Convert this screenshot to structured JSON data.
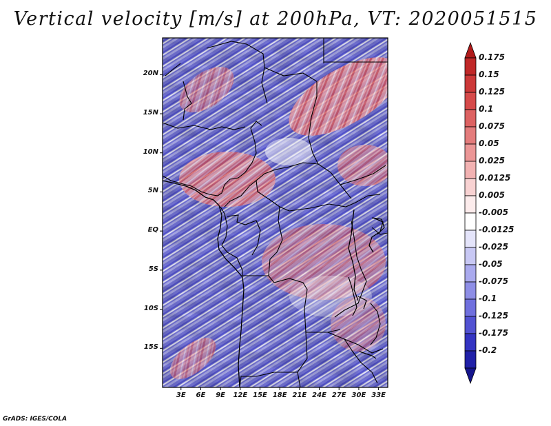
{
  "title": "Vertical velocity [m/s] at 200hPa, VT: 2020051515",
  "footer": "GrADS: IGES/COLA",
  "map": {
    "variable": "Vertical velocity",
    "units": "m/s",
    "level": "200hPa",
    "valid_time": "2020051515",
    "lat_labels": [
      "20N",
      "15N",
      "10N",
      "5N",
      "EQ",
      "5S",
      "10S",
      "15S"
    ],
    "lat_values": [
      20,
      15,
      10,
      5,
      0,
      -5,
      -10,
      -15
    ],
    "lon_labels": [
      "3E",
      "6E",
      "9E",
      "12E",
      "15E",
      "18E",
      "21E",
      "24E",
      "27E",
      "30E",
      "33E"
    ],
    "lon_values": [
      3,
      6,
      9,
      12,
      15,
      18,
      21,
      24,
      27,
      30,
      33
    ],
    "lat_range": [
      -20,
      24.7
    ],
    "lon_range": [
      0.2,
      34.4
    ]
  },
  "colorbar": {
    "labels": [
      "0.175",
      "0.15",
      "0.125",
      "0.1",
      "0.075",
      "0.05",
      "0.025",
      "0.0125",
      "0.005",
      "-0.005",
      "-0.0125",
      "-0.025",
      "-0.05",
      "-0.075",
      "-0.1",
      "-0.125",
      "-0.175",
      "-0.2"
    ],
    "colors": [
      "#b01a1a",
      "#c02828",
      "#cc3838",
      "#d64a4a",
      "#dd6262",
      "#e47c7c",
      "#eb9696",
      "#f2b2b2",
      "#f8d2d2",
      "#fcecec",
      "#ffffff",
      "#e4e4fa",
      "#c8c8f4",
      "#aaaaee",
      "#8e8ee6",
      "#7070de",
      "#5252d2",
      "#3434c2",
      "#2020a8",
      "#14148c"
    ]
  },
  "colors": {
    "positive": "#e06060",
    "negative": "#6a6ae0",
    "border": "#000000"
  }
}
